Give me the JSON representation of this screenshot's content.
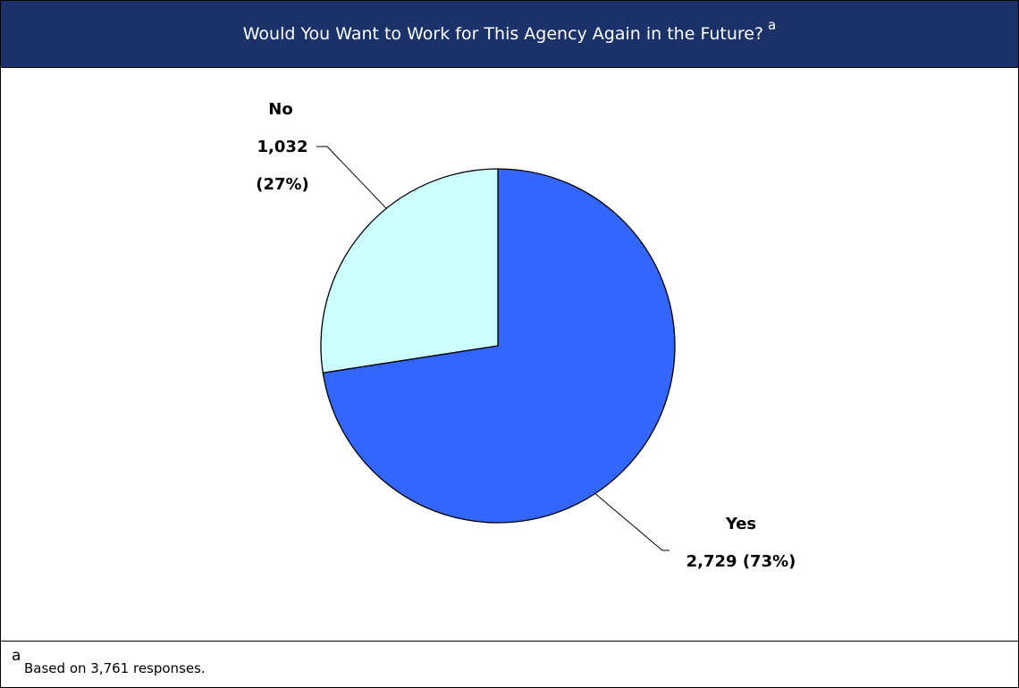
{
  "header": {
    "title": "Would You Want to Work for This Agency Again in the Future?",
    "marker": "a"
  },
  "chart_data": {
    "type": "pie",
    "title": "Would You Want to Work for This Agency Again in the Future?",
    "slices": [
      {
        "label": "Yes",
        "value": 2729,
        "value_text": "2,729",
        "percent_text": "(73%)",
        "color": "#3366ff"
      },
      {
        "label": "No",
        "value": 1032,
        "value_text": "1,032",
        "percent_text": "(27%)",
        "color": "#ccffff"
      }
    ],
    "total": 3761,
    "start_angle_deg": 0,
    "direction": "clockwise"
  },
  "footnote": {
    "marker": "a",
    "text": "Based on 3,761 responses."
  },
  "colors": {
    "header_background": "#1b3269",
    "header_text": "#ffffff",
    "border": "#000000"
  }
}
